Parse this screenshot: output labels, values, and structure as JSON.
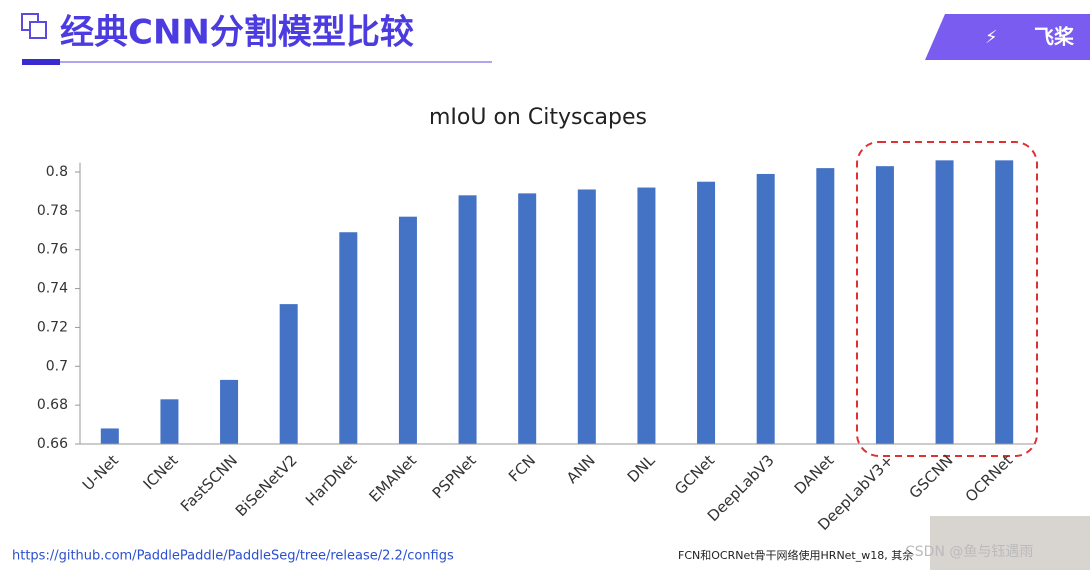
{
  "header": {
    "title": "经典CNN分割模型比较",
    "logo": "飞桨"
  },
  "chart_data": {
    "type": "bar",
    "title": "mIoU on Cityscapes",
    "categories": [
      "U-Net",
      "ICNet",
      "FastSCNN",
      "BiSeNetV2",
      "HarDNet",
      "EMANet",
      "PSPNet",
      "FCN",
      "ANN",
      "DNL",
      "GCNet",
      "DeepLabV3",
      "DANet",
      "DeepLabV3+",
      "GSCNN",
      "OCRNet"
    ],
    "values": [
      0.668,
      0.683,
      0.693,
      0.732,
      0.769,
      0.777,
      0.788,
      0.789,
      0.791,
      0.792,
      0.795,
      0.799,
      0.802,
      0.803,
      0.806,
      0.806
    ],
    "color": "#4472c4",
    "ylim": [
      0.66,
      0.81
    ],
    "yticks": [
      0.66,
      0.68,
      0.7,
      0.72,
      0.74,
      0.76,
      0.78,
      0.8
    ],
    "grid": false
  },
  "footer": {
    "link": "https://github.com/PaddlePaddle/PaddleSeg/tree/release/2.2/configs",
    "note": "FCN和OCRNet骨干网络使用HRNet_w18, 其余",
    "watermark": "CSDN @鱼与钰遇雨"
  }
}
